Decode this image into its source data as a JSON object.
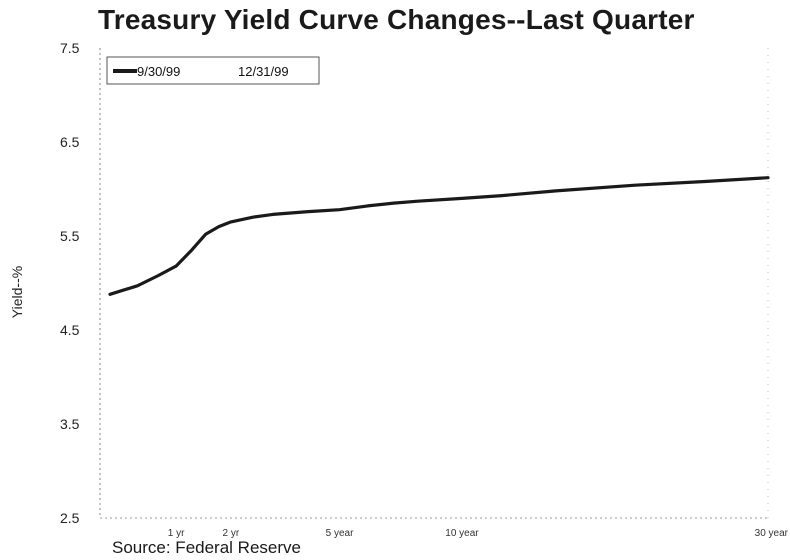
{
  "chart_data": {
    "type": "line",
    "title": "Treasury Yield Curve Changes--Last Quarter",
    "ylabel": "Yield--%",
    "xlabel": "",
    "source": "Source:  Federal Reserve",
    "ylim": [
      2.5,
      7.5
    ],
    "y_ticks": [
      "7.5",
      "6.5",
      "5.5",
      "4.5",
      "3.5",
      "2.5"
    ],
    "x_ticks": [
      {
        "label": "1 yr",
        "x": 1
      },
      {
        "label": "2 yr",
        "x": 2
      },
      {
        "label": "5 year",
        "x": 5
      },
      {
        "label": "10 year",
        "x": 10
      },
      {
        "label": "30 year",
        "x": 30
      }
    ],
    "legend": {
      "position": "top-left",
      "entries": [
        "9/30/99",
        "12/31/99"
      ]
    },
    "series": [
      {
        "name": "9/30/99",
        "color": "#1a1a1a",
        "points": [
          [
            0.25,
            4.88
          ],
          [
            0.5,
            4.97
          ],
          [
            0.75,
            5.08
          ],
          [
            1,
            5.18
          ],
          [
            1.25,
            5.35
          ],
          [
            1.5,
            5.52
          ],
          [
            1.75,
            5.6
          ],
          [
            2,
            5.65
          ],
          [
            2.5,
            5.7
          ],
          [
            3,
            5.73
          ],
          [
            4,
            5.76
          ],
          [
            5,
            5.78
          ],
          [
            6,
            5.82
          ],
          [
            7,
            5.85
          ],
          [
            8,
            5.87
          ],
          [
            10,
            5.9
          ],
          [
            12,
            5.93
          ],
          [
            15,
            5.98
          ],
          [
            20,
            6.04
          ],
          [
            25,
            6.08
          ],
          [
            30,
            6.12
          ]
        ]
      },
      {
        "name": "12/31/99",
        "color": "#1a1a1a",
        "points": []
      }
    ]
  }
}
